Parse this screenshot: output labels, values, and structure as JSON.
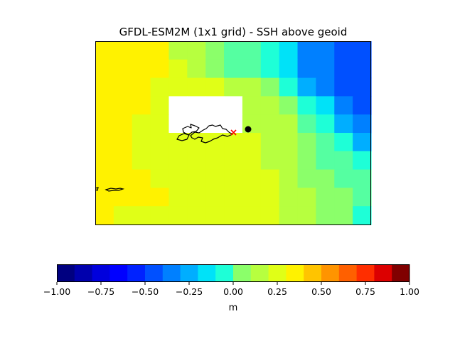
{
  "chart_data": {
    "type": "heatmap",
    "title": "GFDL-ESM2M (1x1 grid) - SSH above geoid",
    "colorbar": {
      "label": "m",
      "range": [
        -1.0,
        1.0
      ],
      "levels": 20,
      "tick_labels": [
        "−1.00",
        "−0.75",
        "−0.50",
        "−0.25",
        "0.00",
        "0.25",
        "0.50",
        "0.75",
        "1.00"
      ],
      "ticks": [
        -1.0,
        -0.75,
        -0.5,
        -0.25,
        0.0,
        0.25,
        0.5,
        0.75,
        1.0
      ],
      "colors": [
        "#000080",
        "#0000ad",
        "#0000dd",
        "#0000ff",
        "#0022ff",
        "#0050ff",
        "#0080ff",
        "#00aeff",
        "#00e2f8",
        "#1effd7",
        "#55ffa1",
        "#8bff6a",
        "#b7ff3f",
        "#e0ff17",
        "#fff200",
        "#ffc400",
        "#ff9400",
        "#ff6000",
        "#ff2e00",
        "#dc0000",
        "#800000"
      ]
    },
    "grid": {
      "rows": 10,
      "cols": 15,
      "bin_values": [
        [
          14,
          14,
          14,
          14,
          12,
          12,
          11,
          10,
          10,
          9,
          8,
          6,
          6,
          5,
          5
        ],
        [
          14,
          14,
          14,
          14,
          13,
          12,
          11,
          10,
          10,
          9,
          8,
          6,
          6,
          5,
          5
        ],
        [
          14,
          14,
          14,
          13,
          13,
          13,
          13,
          12,
          12,
          11,
          9,
          7,
          6,
          5,
          5
        ],
        [
          14,
          14,
          14,
          13,
          13,
          13,
          13,
          12,
          12,
          12,
          11,
          9,
          8,
          6,
          5
        ],
        [
          14,
          14,
          13,
          13,
          13,
          13,
          13,
          13,
          12,
          12,
          12,
          10,
          9,
          7,
          6
        ],
        [
          14,
          14,
          13,
          13,
          13,
          13,
          13,
          13,
          13,
          12,
          12,
          11,
          10,
          9,
          7
        ],
        [
          14,
          14,
          13,
          13,
          13,
          13,
          13,
          13,
          13,
          12,
          12,
          11,
          10,
          10,
          9
        ],
        [
          14,
          14,
          14,
          13,
          13,
          13,
          13,
          13,
          13,
          13,
          12,
          11,
          11,
          10,
          10
        ],
        [
          14,
          14,
          14,
          14,
          13,
          13,
          13,
          13,
          13,
          13,
          12,
          12,
          11,
          11,
          10
        ],
        [
          14,
          13,
          13,
          13,
          13,
          13,
          13,
          13,
          13,
          13,
          12,
          12,
          11,
          11,
          9
        ]
      ],
      "no_data": [
        [
          3,
          4
        ],
        [
          3,
          5
        ],
        [
          3,
          6
        ],
        [
          3,
          7
        ],
        [
          4,
          4
        ],
        [
          4,
          5
        ],
        [
          4,
          6
        ],
        [
          4,
          7
        ]
      ]
    },
    "markers": [
      {
        "type": "circle",
        "color": "#000000"
      },
      {
        "type": "x",
        "color": "#ff0000"
      }
    ]
  }
}
